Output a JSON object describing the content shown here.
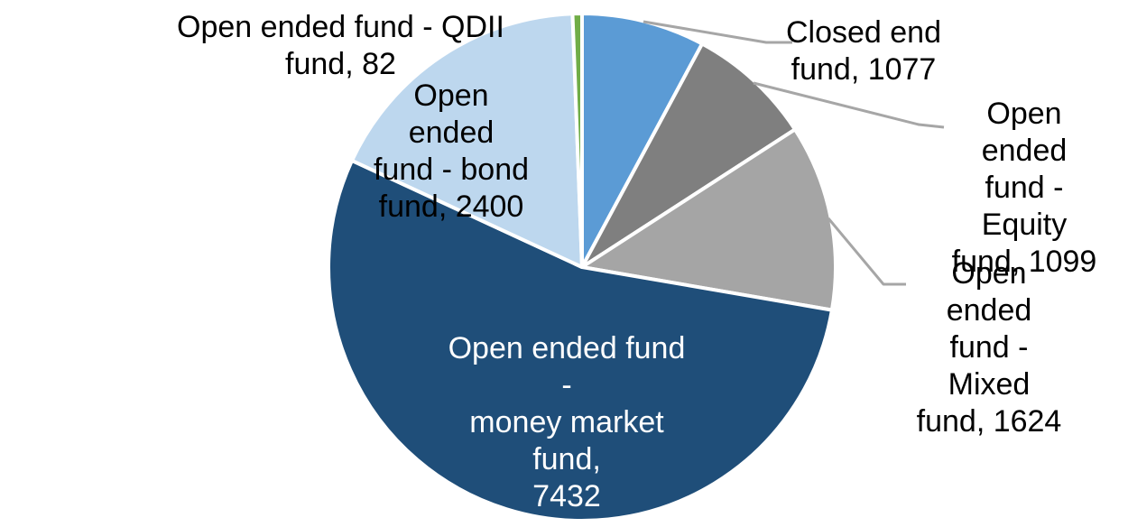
{
  "chart_data": {
    "type": "pie",
    "title": "",
    "total": 13714,
    "direction": "clockwise",
    "start_angle_deg": 0,
    "background": "#FFFFFF",
    "slice_border_color": "#FFFFFF",
    "leader_line_color": "#A6A6A6",
    "legend": "none",
    "segments": [
      {
        "id": "closed_end",
        "label": "Closed end fund",
        "value": 1077,
        "color": "#5B9BD5",
        "label_text": "Closed end\nfund, 1077",
        "label_color": "#000000",
        "has_leader": true
      },
      {
        "id": "equity",
        "label": "Open ended fund - Equity fund",
        "value": 1099,
        "color": "#7F7F7F",
        "label_text": "Open ended\nfund - Equity\nfund, 1099",
        "label_color": "#000000",
        "has_leader": true
      },
      {
        "id": "mixed",
        "label": "Open ended fund - Mixed fund",
        "value": 1624,
        "color": "#A5A5A5",
        "label_text": "Open ended\nfund - Mixed\nfund, 1624",
        "label_color": "#000000",
        "has_leader": true
      },
      {
        "id": "money_market",
        "label": "Open ended fund - money market fund",
        "value": 7432,
        "color": "#1F4E79",
        "label_text": "Open ended fund -\nmoney market fund,\n7432",
        "label_color": "#FFFFFF",
        "has_leader": false
      },
      {
        "id": "bond",
        "label": "Open ended fund - bond fund",
        "value": 2400,
        "color": "#BDD7EE",
        "label_text": "Open ended\nfund - bond\nfund, 2400",
        "label_color": "#000000",
        "has_leader": false
      },
      {
        "id": "qdii",
        "label": "Open ended fund - QDII fund",
        "value": 82,
        "color": "#70AD47",
        "label_text": "Open ended fund - QDII\nfund, 82",
        "label_color": "#000000",
        "has_leader": false
      }
    ]
  }
}
